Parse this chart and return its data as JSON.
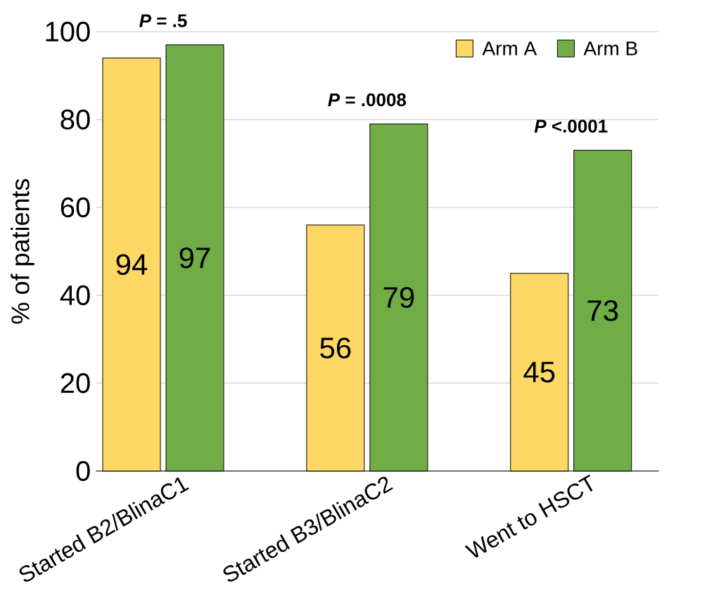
{
  "chart_data": {
    "type": "bar",
    "ylabel": "% of patients",
    "categories": [
      "Started B2/BlinaC1",
      "Started B3/BlinaC2",
      "Went to HSCT"
    ],
    "series": [
      {
        "name": "Arm A",
        "color": "#fdd865",
        "values": [
          94,
          56,
          45
        ]
      },
      {
        "name": "Arm B",
        "color": "#70ad47",
        "values": [
          97,
          79,
          73
        ]
      }
    ],
    "ylim": [
      0,
      100
    ],
    "yticks": [
      0,
      20,
      40,
      60,
      80,
      100
    ],
    "grid": "y",
    "legend": "top right",
    "data_labels": true,
    "annotations": [
      "*P* = .5",
      "*P* = .0008",
      "*P* <.0001"
    ]
  }
}
